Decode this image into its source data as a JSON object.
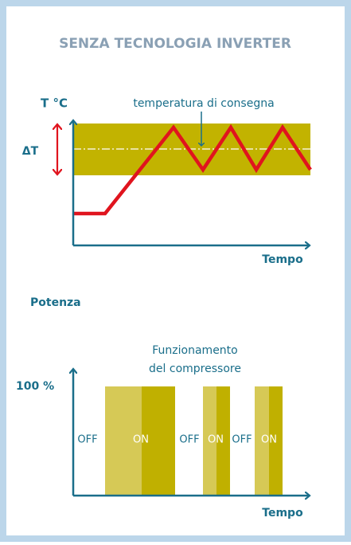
{
  "header": {
    "title": "SENZA TECNOLOGIA INVERTER"
  },
  "temperature_chart": {
    "y_label": "T °C",
    "band_label": "ΔT",
    "annotation": "temperatura di consegna",
    "x_label": "Tempo"
  },
  "power_chart": {
    "y_label": "Potenza",
    "caption": [
      "Funzionamento",
      "del compressore"
    ],
    "max_label": "100 %",
    "x_label": "Tempo",
    "states": [
      "OFF",
      "ON",
      "OFF",
      "ON",
      "OFF",
      "ON"
    ]
  }
}
